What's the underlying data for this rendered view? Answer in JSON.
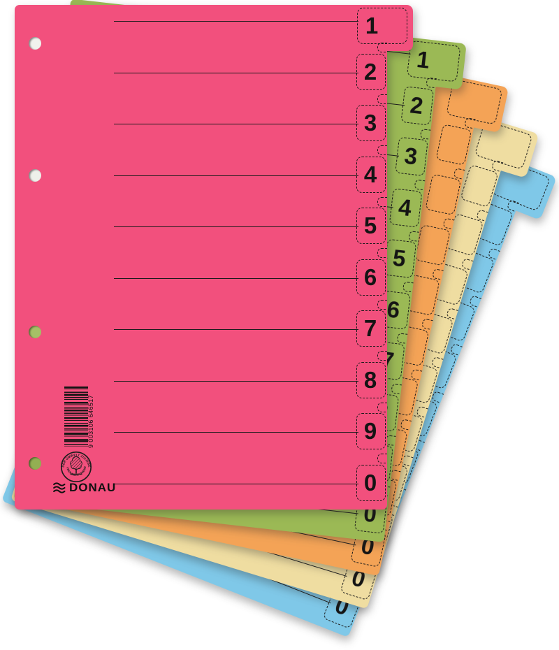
{
  "brand": {
    "logo_text": "DONAU",
    "logo_icon": "triple-wave-icon"
  },
  "barcode": {
    "digits": "9 003106 646517"
  },
  "eco_stamp": {
    "top_text": "DER UMWELT ZULIEBE",
    "bottom_text": "ENVIRONMENT FRIENDLY",
    "icon": "tree-icon"
  },
  "tab_numbers": [
    "1",
    "2",
    "3",
    "4",
    "5",
    "6",
    "7",
    "8",
    "9",
    "0"
  ],
  "sheets": [
    {
      "id": "pink",
      "color": "#f2507d"
    },
    {
      "id": "green",
      "color": "#9bb955"
    },
    {
      "id": "orange",
      "color": "#f4a356"
    },
    {
      "id": "yellow",
      "color": "#efdda1"
    },
    {
      "id": "blue",
      "color": "#7fc8e8"
    }
  ],
  "punch_holes": {
    "count": 4
  }
}
